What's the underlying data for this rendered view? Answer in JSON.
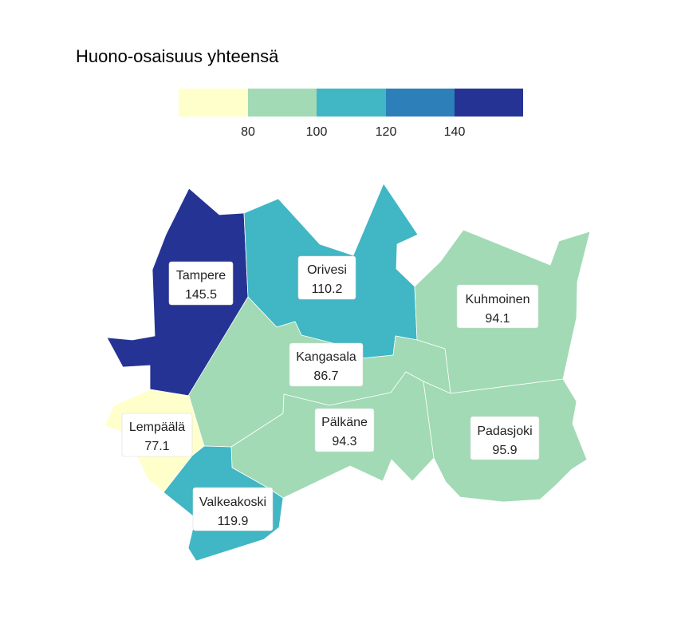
{
  "title": "Huono-osaisuus yhteensä",
  "legend": {
    "colors": [
      "#ffffcc",
      "#a1dab4",
      "#41b6c4",
      "#2c7fb8",
      "#253494"
    ],
    "ticks": [
      "80",
      "100",
      "120",
      "140"
    ]
  },
  "regions": [
    {
      "id": "tampere",
      "name": "Tampere",
      "value": "145.5",
      "color": "#253494"
    },
    {
      "id": "orivesi",
      "name": "Orivesi",
      "value": "110.2",
      "color": "#41b6c4"
    },
    {
      "id": "kuhmoinen",
      "name": "Kuhmoinen",
      "value": "94.1",
      "color": "#a1dab4"
    },
    {
      "id": "kangasala",
      "name": "Kangasala",
      "value": "86.7",
      "color": "#a1dab4"
    },
    {
      "id": "lempaala",
      "name": "Lempäälä",
      "value": "77.1",
      "color": "#ffffcc"
    },
    {
      "id": "palkane",
      "name": "Pälkäne",
      "value": "94.3",
      "color": "#a1dab4"
    },
    {
      "id": "padasjoki",
      "name": "Padasjoki",
      "value": "95.9",
      "color": "#a1dab4"
    },
    {
      "id": "valkeakoski",
      "name": "Valkeakoski",
      "value": "119.9",
      "color": "#41b6c4"
    }
  ]
}
